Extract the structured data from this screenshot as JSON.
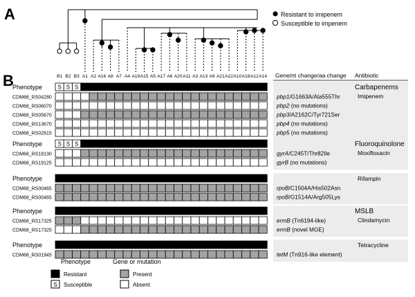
{
  "panel_a_label": "A",
  "panel_b_label": "B",
  "tree_legend": {
    "resistant": "Resistant to imipenem",
    "susceptible": "Susceptible to impenem"
  },
  "isolates": [
    "B1",
    "B2",
    "B3",
    "A1",
    "A2",
    "A16",
    "A8",
    "A7",
    "A4",
    "A19",
    "A15",
    "A5",
    "A17",
    "A6",
    "A20",
    "A11",
    "A3",
    "A13",
    "A9",
    "A21",
    "A22",
    "A10",
    "A18",
    "A12",
    "A14"
  ],
  "tree_leaf_states": [
    "S",
    "S",
    "S",
    "R",
    "R",
    "R",
    "R",
    "R",
    "R",
    "R",
    "R",
    "R",
    "R",
    "R",
    "R",
    "R",
    "R",
    "R",
    "R",
    "R",
    "R",
    "R",
    "R",
    "R",
    "R"
  ],
  "headers": {
    "gene_change": "Gene/nt change/aa change",
    "antibiotic": "Antibiotic"
  },
  "phenotype_label": "Phenotype",
  "sections": [
    {
      "class_name": "Carbapenems",
      "drug": "Imipenem",
      "phenotype": [
        "S",
        "S",
        "S",
        "R",
        "R",
        "R",
        "R",
        "R",
        "R",
        "R",
        "R",
        "R",
        "R",
        "R",
        "R",
        "R",
        "R",
        "R",
        "R",
        "R",
        "R",
        "R",
        "R",
        "R",
        "R"
      ],
      "genes": [
        {
          "locus": "CDM68_RS04280",
          "gene": "pbp1",
          "detail": "/G1663A/Ala555Thr",
          "states": "0000111111111111111111111"
        },
        {
          "locus": "CDM68_RS06070",
          "gene": "pbp2",
          "detail": " (no mutations)",
          "states": "0000000000000000000000000"
        },
        {
          "locus": "CDM68_RS05670",
          "gene": "pbp3",
          "detail": "/A2162C/Tyr721Ser",
          "states": "0001111111111111111111111"
        },
        {
          "locus": "CDM68_RS13670",
          "gene": "pbp4",
          "detail": " (no mutations)",
          "states": "0000000000000000000000000"
        },
        {
          "locus": "CDM68_RS02615",
          "gene": "pbp5",
          "detail": " (no mutations)",
          "states": "0000000000000000000000000"
        }
      ]
    },
    {
      "class_name": "Fluoroquinolone",
      "drug": "Moxifloxacin",
      "phenotype": [
        "S",
        "S",
        "S",
        "R",
        "R",
        "R",
        "R",
        "R",
        "R",
        "R",
        "R",
        "R",
        "R",
        "R",
        "R",
        "R",
        "R",
        "R",
        "R",
        "R",
        "R",
        "R",
        "R",
        "R",
        "R"
      ],
      "genes": [
        {
          "locus": "CDM68_RS19130",
          "gene": "gyrA",
          "detail": "/C245T/Thr82Ile",
          "states": "0001111111111111111111111"
        },
        {
          "locus": "CDM68_RS19125",
          "gene": "gyrB",
          "detail": " (no mutations)",
          "states": "0000000000000000000000000"
        }
      ]
    },
    {
      "class_name": "",
      "drug": "Rifampin",
      "phenotype": [
        "R",
        "R",
        "R",
        "R",
        "R",
        "R",
        "R",
        "R",
        "R",
        "R",
        "R",
        "R",
        "R",
        "R",
        "R",
        "R",
        "R",
        "R",
        "R",
        "R",
        "R",
        "R",
        "R",
        "R",
        "R"
      ],
      "genes": [
        {
          "locus": "CDM68_RS00465",
          "gene": "rpoB",
          "detail": "/C1504A/His502Asn",
          "states": "1111111111111111111111111"
        },
        {
          "locus": "CDM68_RS00465",
          "gene": "rpoB",
          "detail": "/G1514A/Arg505Lys",
          "states": "1111111111111111111111111"
        }
      ]
    },
    {
      "class_name": "MSLB",
      "drug": "Clindamycin",
      "phenotype": [
        "R",
        "R",
        "R",
        "R",
        "R",
        "R",
        "R",
        "R",
        "R",
        "R",
        "R",
        "R",
        "R",
        "R",
        "R",
        "R",
        "R",
        "R",
        "R",
        "R",
        "R",
        "R",
        "R",
        "R",
        "R"
      ],
      "genes": [
        {
          "locus": "CDM68_RS17325",
          "gene": "ermB",
          "detail": " (Tn6194-like)",
          "states": "1110000000000000000000000"
        },
        {
          "locus": "CDM68_RS17325",
          "gene": "ermB",
          "detail": " (novel MGE)",
          "states": "0001111111111111111111111"
        }
      ]
    },
    {
      "class_name": "",
      "drug": "Tetracycline",
      "phenotype": [
        "R",
        "R",
        "R",
        "R",
        "R",
        "R",
        "R",
        "R",
        "R",
        "R",
        "R",
        "R",
        "R",
        "R",
        "R",
        "R",
        "R",
        "R",
        "R",
        "R",
        "R",
        "R",
        "R",
        "R",
        "R"
      ],
      "genes": [
        {
          "locus": "CDM68_RS01945",
          "gene": "tetM",
          "detail": " (Tn916-like element)",
          "states": "1111111111111111111111111"
        }
      ]
    }
  ],
  "legend": {
    "phenotype_title": "Phenotype",
    "resistant": "Resistant",
    "susceptible": "Susceptible",
    "s_symbol": "S",
    "gene_title": "Gene or mutation",
    "present": "Present",
    "absent": "Absent"
  },
  "colors": {
    "resistant": "#000000",
    "present": "#a3a3a3",
    "absent": "#ffffff",
    "side_panel": "#ececec"
  }
}
